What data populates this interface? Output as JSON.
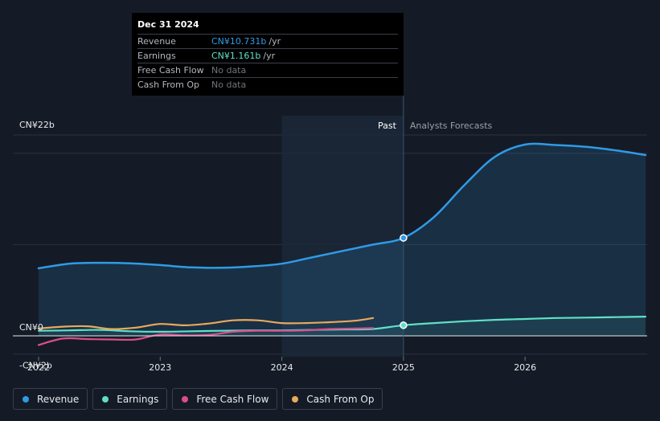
{
  "tooltip": {
    "date": "Dec 31 2024",
    "rows": [
      {
        "label": "Revenue",
        "value": "CN¥10.731b",
        "unit": "/yr",
        "color": "#2f9be6"
      },
      {
        "label": "Earnings",
        "value": "CN¥1.161b",
        "unit": "/yr",
        "color": "#5fe0c8"
      },
      {
        "label": "Free Cash Flow",
        "value": "No data",
        "unit": "",
        "color": null
      },
      {
        "label": "Cash From Op",
        "value": "No data",
        "unit": "",
        "color": null
      }
    ]
  },
  "legend": [
    {
      "label": "Revenue",
      "color": "#2f9be6"
    },
    {
      "label": "Earnings",
      "color": "#5fe0c8"
    },
    {
      "label": "Free Cash Flow",
      "color": "#d94f8a"
    },
    {
      "label": "Cash From Op",
      "color": "#e9a95b"
    }
  ],
  "chart_data": {
    "type": "line",
    "title": "",
    "y_tick_labels": [
      "CN¥22b",
      "CN¥0",
      "-CN¥2b"
    ],
    "x_tick_labels": [
      "2022",
      "2023",
      "2024",
      "2025",
      "2026"
    ],
    "ylim": [
      -2,
      22
    ],
    "xlim": [
      2021.83,
      2026.99
    ],
    "past_label": "Past",
    "forecast_label": "Analysts Forecasts",
    "forecast_start": 2025.0,
    "past_region_start": 2024.0,
    "grid": true,
    "series": [
      {
        "name": "Revenue",
        "color": "#2f9be6",
        "x": [
          2022.0,
          2022.25,
          2022.5,
          2022.75,
          2023.0,
          2023.25,
          2023.5,
          2023.75,
          2024.0,
          2024.25,
          2024.5,
          2024.75,
          2025.0,
          2025.25,
          2025.5,
          2025.75,
          2026.0,
          2026.25,
          2026.5,
          2026.75,
          2026.99
        ],
        "values": [
          7.4,
          7.9,
          8.0,
          7.95,
          7.75,
          7.5,
          7.45,
          7.6,
          7.9,
          8.6,
          9.3,
          10.0,
          10.73,
          13.0,
          16.5,
          19.6,
          20.95,
          20.9,
          20.7,
          20.3,
          19.8
        ]
      },
      {
        "name": "Earnings",
        "color": "#5fe0c8",
        "x": [
          2022.0,
          2022.25,
          2022.5,
          2022.75,
          2023.0,
          2023.25,
          2023.5,
          2023.75,
          2024.0,
          2024.25,
          2024.5,
          2024.75,
          2025.0,
          2025.25,
          2025.5,
          2025.75,
          2026.0,
          2026.25,
          2026.5,
          2026.75,
          2026.99
        ],
        "values": [
          0.55,
          0.6,
          0.65,
          0.5,
          0.45,
          0.5,
          0.55,
          0.6,
          0.6,
          0.65,
          0.7,
          0.75,
          1.16,
          1.4,
          1.6,
          1.75,
          1.85,
          1.95,
          2.0,
          2.05,
          2.1
        ]
      },
      {
        "name": "Free Cash Flow",
        "color": "#d94f8a",
        "x": [
          2022.0,
          2022.2,
          2022.4,
          2022.6,
          2022.8,
          2023.0,
          2023.2,
          2023.4,
          2023.6,
          2023.8,
          2024.0,
          2024.2,
          2024.4,
          2024.6,
          2024.75
        ],
        "values": [
          -1.0,
          -0.3,
          -0.35,
          -0.4,
          -0.4,
          0.15,
          0.05,
          0.1,
          0.45,
          0.55,
          0.55,
          0.6,
          0.75,
          0.8,
          0.85
        ]
      },
      {
        "name": "Cash From Op",
        "color": "#e9a95b",
        "x": [
          2022.0,
          2022.2,
          2022.4,
          2022.6,
          2022.8,
          2023.0,
          2023.2,
          2023.4,
          2023.6,
          2023.8,
          2024.0,
          2024.2,
          2024.4,
          2024.6,
          2024.75
        ],
        "values": [
          0.8,
          1.0,
          1.05,
          0.75,
          0.9,
          1.3,
          1.15,
          1.35,
          1.7,
          1.7,
          1.4,
          1.4,
          1.5,
          1.65,
          1.95
        ]
      }
    ]
  }
}
